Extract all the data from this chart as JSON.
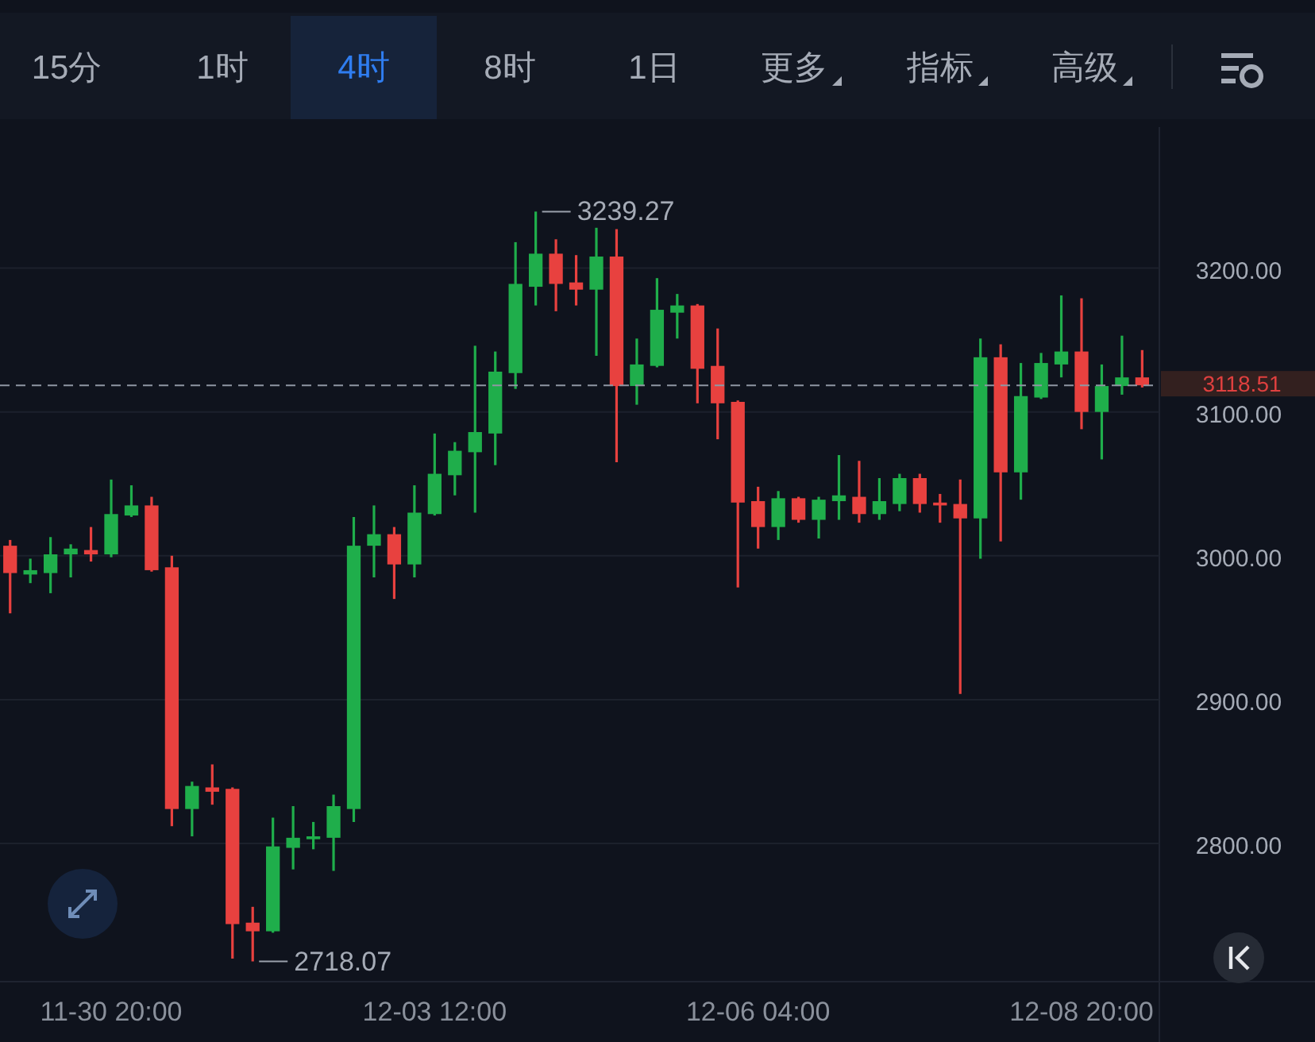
{
  "chart_data": {
    "type": "candlestick",
    "annotations": [
      "15分",
      "1时",
      "4时",
      "8时",
      "1日",
      "更多",
      "指标",
      "高级",
      "3239.27",
      "2718.07"
    ],
    "categories": [
      null,
      null,
      null,
      null,
      null,
      "11-30 20:00",
      null,
      null,
      null,
      null,
      null,
      null,
      null,
      null,
      null,
      null,
      null,
      null,
      null,
      null,
      null,
      "12-03 12:00",
      null,
      null,
      null,
      null,
      null,
      null,
      null,
      null,
      null,
      null,
      null,
      null,
      null,
      null,
      null,
      "12-06 04:00",
      null,
      null,
      null,
      null,
      null,
      null,
      null,
      null,
      null,
      null,
      null,
      null,
      null,
      null,
      null,
      "12-08 20:00",
      null,
      null,
      null
    ],
    "ohlc": [
      [
        3007,
        3011,
        2960,
        2988
      ],
      [
        2987,
        2998,
        2981,
        2990
      ],
      [
        2988,
        3013,
        2974,
        3001
      ],
      [
        3001,
        3008,
        2985,
        3005
      ],
      [
        3004,
        3020,
        2996,
        3001
      ],
      [
        3001,
        3053,
        2999,
        3029
      ],
      [
        3028,
        3049,
        3027,
        3035
      ],
      [
        3035,
        3041,
        2989,
        2990
      ],
      [
        2992,
        3000,
        2812,
        2824
      ],
      [
        2824,
        2843,
        2805,
        2840
      ],
      [
        2839,
        2855,
        2827,
        2836
      ],
      [
        2838,
        2839,
        2720,
        2744
      ],
      [
        2745,
        2756,
        2718.07,
        2739
      ],
      [
        2739,
        2818,
        2738,
        2798
      ],
      [
        2797,
        2826,
        2782,
        2804
      ],
      [
        2803,
        2815,
        2796,
        2805
      ],
      [
        2804,
        2834,
        2781,
        2826
      ],
      [
        2824,
        3027,
        2815,
        3007
      ],
      [
        3007,
        3035,
        2985,
        3015
      ],
      [
        3015,
        3020,
        2970,
        2994
      ],
      [
        2994,
        3049,
        2985,
        3030
      ],
      [
        3029,
        3085,
        3028,
        3057
      ],
      [
        3056,
        3079,
        3042,
        3073
      ],
      [
        3072,
        3146,
        3030,
        3086
      ],
      [
        3085,
        3142,
        3063,
        3128
      ],
      [
        3127,
        3218,
        3116,
        3189
      ],
      [
        3187,
        3239.27,
        3174,
        3210
      ],
      [
        3210,
        3220,
        3170,
        3189
      ],
      [
        3190,
        3209,
        3174,
        3185
      ],
      [
        3185,
        3228,
        3139,
        3208
      ],
      [
        3208,
        3227,
        3065,
        3118
      ],
      [
        3118,
        3151,
        3105,
        3133
      ],
      [
        3132,
        3193,
        3131,
        3171
      ],
      [
        3169,
        3182,
        3151,
        3174
      ],
      [
        3174,
        3175,
        3106,
        3130
      ],
      [
        3132,
        3158,
        3081,
        3106
      ],
      [
        3107,
        3108,
        2978,
        3037
      ],
      [
        3038,
        3048,
        3005,
        3020
      ],
      [
        3020,
        3045,
        3011,
        3040
      ],
      [
        3040,
        3041,
        3023,
        3025
      ],
      [
        3025,
        3041,
        3012,
        3039
      ],
      [
        3038,
        3070,
        3025,
        3042
      ],
      [
        3041,
        3066,
        3023,
        3029
      ],
      [
        3029,
        3054,
        3025,
        3038
      ],
      [
        3036,
        3057,
        3031,
        3054
      ],
      [
        3054,
        3057,
        3030,
        3036
      ],
      [
        3037,
        3043,
        3023,
        3035
      ],
      [
        3036,
        3053,
        2904,
        3026
      ],
      [
        3026,
        3151,
        2998,
        3138
      ],
      [
        3138,
        3147,
        3010,
        3058
      ],
      [
        3058,
        3134,
        3039,
        3111
      ],
      [
        3110,
        3141,
        3109,
        3134
      ],
      [
        3133,
        3181,
        3124,
        3142
      ],
      [
        3142,
        3179,
        3088,
        3100
      ],
      [
        3100,
        3133,
        3067,
        3118
      ],
      [
        3118,
        3153,
        3112,
        3124
      ],
      [
        3124,
        3143,
        3117,
        3118.51
      ]
    ],
    "colors": [
      "#e8413f",
      "#1fae4b",
      "#1fae4b",
      "#1fae4b",
      "#e8413f",
      "#1fae4b",
      "#1fae4b",
      "#e8413f",
      "#e8413f",
      "#1fae4b",
      "#e8413f",
      "#e8413f",
      "#e8413f",
      "#1fae4b",
      "#1fae4b",
      "#1fae4b",
      "#1fae4b",
      "#1fae4b",
      "#1fae4b",
      "#e8413f",
      "#1fae4b",
      "#1fae4b",
      "#1fae4b",
      "#1fae4b",
      "#1fae4b",
      "#1fae4b",
      "#1fae4b",
      "#e8413f",
      "#e8413f",
      "#1fae4b",
      "#e8413f",
      "#1fae4b",
      "#1fae4b",
      "#1fae4b",
      "#e8413f",
      "#e8413f",
      "#e8413f",
      "#e8413f",
      "#1fae4b",
      "#e8413f",
      "#1fae4b",
      "#1fae4b",
      "#e8413f",
      "#1fae4b",
      "#1fae4b",
      "#e8413f",
      "#e8413f",
      "#e8413f",
      "#1fae4b",
      "#e8413f",
      "#1fae4b",
      "#1fae4b",
      "#1fae4b",
      "#e8413f",
      "#1fae4b",
      "#1fae4b",
      "#e8413f"
    ],
    "ylim": [
      2704,
      3298
    ],
    "yticks": [
      {
        "value": 2800,
        "label": "2800.00"
      },
      {
        "value": 2900,
        "label": "2900.00"
      },
      {
        "value": 3000,
        "label": "3000.00"
      },
      {
        "value": 3100,
        "label": "3100.00"
      },
      {
        "value": 3200,
        "label": "3200.00"
      }
    ],
    "ref_lines": [
      {
        "axis": "y",
        "value": 3118.51,
        "label": "3118.51",
        "color": "#8f96a3",
        "line_style": "dashed"
      }
    ],
    "grid": "y"
  }
}
